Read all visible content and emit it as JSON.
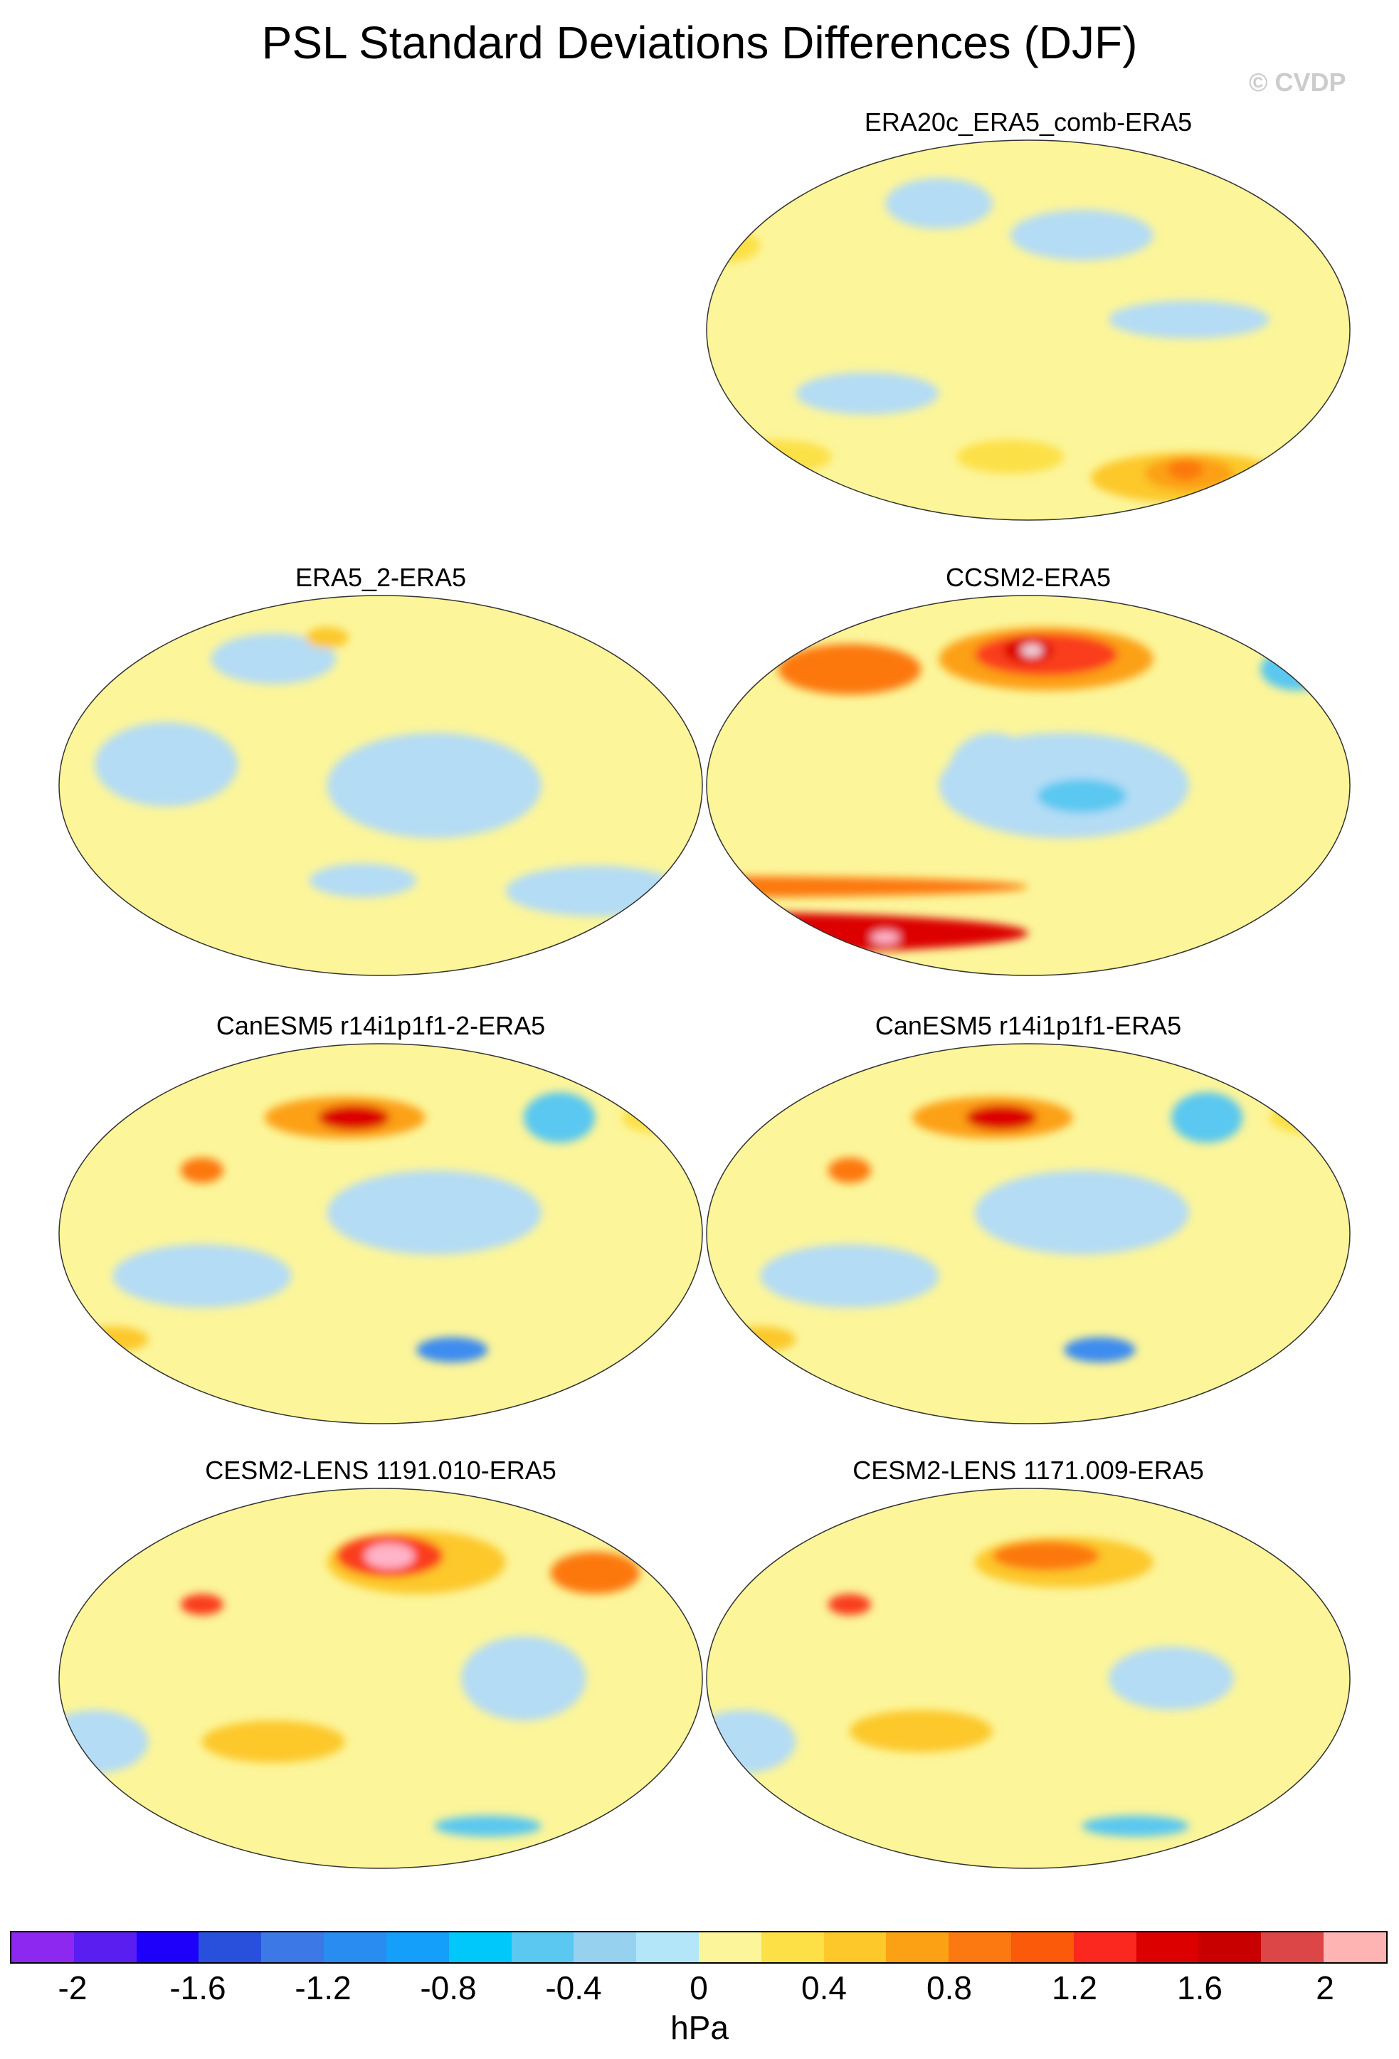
{
  "figure": {
    "title": "PSL Standard Deviations Differences (DJF)",
    "copyright": "© CVDP"
  },
  "panels": [
    {
      "title": "ERA20c_ERA5_comb-ERA5",
      "base": "#fcf59a",
      "blobs": [
        {
          "lon": -150,
          "lat": 45,
          "rx": 40,
          "ry": 12,
          "c": "#b4dcf5"
        },
        {
          "lon": 130,
          "lat": 60,
          "rx": 30,
          "ry": 12,
          "c": "#b4dcf5"
        },
        {
          "lon": 90,
          "lat": -30,
          "rx": 40,
          "ry": 10,
          "c": "#b4dcf5"
        },
        {
          "lon": -90,
          "lat": 5,
          "rx": 45,
          "ry": 9,
          "c": "#b4dcf5"
        },
        {
          "lon": -20,
          "lat": 65,
          "rx": 25,
          "ry": 10,
          "c": "#b4dcf5"
        },
        {
          "lon": 10,
          "lat": 40,
          "rx": 20,
          "ry": 8,
          "c": "#fce046"
        },
        {
          "lon": -90,
          "lat": -70,
          "rx": 55,
          "ry": 12,
          "c": "#fcc82a"
        },
        {
          "lon": -90,
          "lat": -68,
          "rx": 25,
          "ry": 8,
          "c": "#fca014"
        },
        {
          "lon": -92,
          "lat": -66,
          "rx": 10,
          "ry": 5,
          "c": "#fc7810"
        },
        {
          "lon": 40,
          "lat": -60,
          "rx": 30,
          "ry": 8,
          "c": "#fce046"
        },
        {
          "lon": 170,
          "lat": -60,
          "rx": 30,
          "ry": 8,
          "c": "#fce046"
        }
      ]
    },
    {
      "title": "ERA5_2-ERA5",
      "base": "#fcf59a",
      "blobs": [
        {
          "lon": -150,
          "lat": 0,
          "rx": 60,
          "ry": 25,
          "c": "#b4dcf5"
        },
        {
          "lon": 60,
          "lat": 10,
          "rx": 40,
          "ry": 20,
          "c": "#b4dcf5"
        },
        {
          "lon": -60,
          "lat": -50,
          "rx": 50,
          "ry": 12,
          "c": "#b4dcf5"
        },
        {
          "lon": 120,
          "lat": 60,
          "rx": 35,
          "ry": 12,
          "c": "#b4dcf5"
        },
        {
          "lon": 170,
          "lat": -45,
          "rx": 30,
          "ry": 8,
          "c": "#b4dcf5"
        },
        {
          "lon": -10,
          "lat": 60,
          "rx": 20,
          "ry": 10,
          "c": "#fce046"
        },
        {
          "lon": -10,
          "lat": -70,
          "rx": 12,
          "ry": 5,
          "c": "#5ac8f0"
        },
        {
          "lon": 150,
          "lat": 70,
          "rx": 12,
          "ry": 5,
          "c": "#fcc82a"
        }
      ]
    },
    {
      "title": "CCSM2-ERA5",
      "base": "#fcf59a",
      "blobs": [
        {
          "lon": -160,
          "lat": 0,
          "rx": 70,
          "ry": 25,
          "c": "#b4dcf5"
        },
        {
          "lon": 160,
          "lat": 5,
          "rx": 25,
          "ry": 20,
          "c": "#b4dcf5"
        },
        {
          "lon": -150,
          "lat": -5,
          "rx": 25,
          "ry": 8,
          "c": "#5ac8f0"
        },
        {
          "lon": -170,
          "lat": 60,
          "rx": 60,
          "ry": 15,
          "c": "#fca014"
        },
        {
          "lon": -170,
          "lat": 62,
          "rx": 40,
          "ry": 10,
          "c": "#fa3c1e"
        },
        {
          "lon": -180,
          "lat": 64,
          "rx": 14,
          "ry": 6,
          "c": "#dc0000"
        },
        {
          "lon": -178,
          "lat": 64,
          "rx": 6,
          "ry": 3,
          "c": "#f0d2dc"
        },
        {
          "lon": 80,
          "lat": 55,
          "rx": 40,
          "ry": 12,
          "c": "#fc7810"
        },
        {
          "lon": -30,
          "lat": 55,
          "rx": 20,
          "ry": 10,
          "c": "#5ac8f0"
        },
        {
          "lon": 0,
          "lat": -48,
          "rx": 180,
          "ry": 5,
          "c": "#fc7810"
        },
        {
          "lon": 0,
          "lat": -70,
          "rx": 180,
          "ry": 10,
          "c": "#dc0000"
        },
        {
          "lon": -30,
          "lat": -70,
          "rx": 15,
          "ry": 4,
          "c": "#ffb4c8"
        },
        {
          "lon": 100,
          "lat": -72,
          "rx": 8,
          "ry": 3,
          "c": "#ffb4c8"
        }
      ]
    },
    {
      "title": "CanESM5 r14i1p1f1-2-ERA5",
      "base": "#fcf59a",
      "blobs": [
        {
          "lon": -150,
          "lat": 10,
          "rx": 60,
          "ry": 20,
          "c": "#b4dcf5"
        },
        {
          "lon": 80,
          "lat": -20,
          "rx": 50,
          "ry": 15,
          "c": "#b4dcf5"
        },
        {
          "lon": -80,
          "lat": 55,
          "rx": 20,
          "ry": 12,
          "c": "#5ac8f0"
        },
        {
          "lon": 160,
          "lat": 55,
          "rx": 45,
          "ry": 10,
          "c": "#fca014"
        },
        {
          "lon": 165,
          "lat": 55,
          "rx": 20,
          "ry": 6,
          "c": "#dc0000"
        },
        {
          "lon": 80,
          "lat": 30,
          "rx": 12,
          "ry": 6,
          "c": "#fc7810"
        },
        {
          "lon": -140,
          "lat": -55,
          "rx": 20,
          "ry": 6,
          "c": "#3c8cf0"
        },
        {
          "lon": 30,
          "lat": -50,
          "rx": 20,
          "ry": 6,
          "c": "#fcc82a"
        },
        {
          "lon": -20,
          "lat": 55,
          "rx": 25,
          "ry": 8,
          "c": "#fce046"
        }
      ]
    },
    {
      "title": "CanESM5 r14i1p1f1-ERA5",
      "base": "#fcf59a",
      "blobs": [
        {
          "lon": -150,
          "lat": 10,
          "rx": 60,
          "ry": 20,
          "c": "#b4dcf5"
        },
        {
          "lon": 80,
          "lat": -20,
          "rx": 50,
          "ry": 15,
          "c": "#b4dcf5"
        },
        {
          "lon": -80,
          "lat": 55,
          "rx": 20,
          "ry": 12,
          "c": "#5ac8f0"
        },
        {
          "lon": 160,
          "lat": 55,
          "rx": 45,
          "ry": 10,
          "c": "#fca014"
        },
        {
          "lon": 165,
          "lat": 55,
          "rx": 20,
          "ry": 6,
          "c": "#dc0000"
        },
        {
          "lon": 80,
          "lat": 30,
          "rx": 12,
          "ry": 6,
          "c": "#fc7810"
        },
        {
          "lon": -140,
          "lat": -55,
          "rx": 20,
          "ry": 6,
          "c": "#3c8cf0"
        },
        {
          "lon": 30,
          "lat": -50,
          "rx": 20,
          "ry": 6,
          "c": "#fcc82a"
        },
        {
          "lon": -20,
          "lat": 55,
          "rx": 25,
          "ry": 8,
          "c": "#fce046"
        }
      ]
    },
    {
      "title": "CESM2-LENS 1191.010-ERA5",
      "base": "#fcf59a",
      "blobs": [
        {
          "lon": -100,
          "lat": 0,
          "rx": 35,
          "ry": 20,
          "c": "#b4dcf5"
        },
        {
          "lon": 20,
          "lat": -30,
          "rx": 30,
          "ry": 15,
          "c": "#b4dcf5"
        },
        {
          "lon": -160,
          "lat": 55,
          "rx": 50,
          "ry": 15,
          "c": "#fcc82a"
        },
        {
          "lon": -175,
          "lat": 58,
          "rx": 30,
          "ry": 10,
          "c": "#fa3c1e"
        },
        {
          "lon": -175,
          "lat": 58,
          "rx": 14,
          "ry": 6,
          "c": "#ffb4c8"
        },
        {
          "lon": -60,
          "lat": 50,
          "rx": 25,
          "ry": 10,
          "c": "#fc7810"
        },
        {
          "lon": 120,
          "lat": -30,
          "rx": 40,
          "ry": 10,
          "c": "#fcc82a"
        },
        {
          "lon": -120,
          "lat": -70,
          "rx": 30,
          "ry": 5,
          "c": "#5ac8f0"
        },
        {
          "lon": 80,
          "lat": 35,
          "rx": 12,
          "ry": 5,
          "c": "#fa3c1e"
        }
      ]
    },
    {
      "title": "CESM2-LENS 1171.009-ERA5",
      "base": "#fcf59a",
      "blobs": [
        {
          "lon": -100,
          "lat": 0,
          "rx": 35,
          "ry": 15,
          "c": "#b4dcf5"
        },
        {
          "lon": 20,
          "lat": -30,
          "rx": 30,
          "ry": 15,
          "c": "#b4dcf5"
        },
        {
          "lon": -160,
          "lat": 55,
          "rx": 50,
          "ry": 12,
          "c": "#fcc82a"
        },
        {
          "lon": -170,
          "lat": 58,
          "rx": 30,
          "ry": 7,
          "c": "#fc7810"
        },
        {
          "lon": -20,
          "lat": 60,
          "rx": 10,
          "ry": 5,
          "c": "#dc0000"
        },
        {
          "lon": 120,
          "lat": -25,
          "rx": 40,
          "ry": 10,
          "c": "#fcc82a"
        },
        {
          "lon": -120,
          "lat": -70,
          "rx": 30,
          "ry": 5,
          "c": "#5ac8f0"
        },
        {
          "lon": 80,
          "lat": 35,
          "rx": 12,
          "ry": 5,
          "c": "#fa3c1e"
        }
      ]
    }
  ],
  "colorbar": {
    "colors": [
      "#8c28f0",
      "#5a1ef0",
      "#1e00fa",
      "#2850dc",
      "#3c78e6",
      "#288cf0",
      "#14a0fa",
      "#00c8fa",
      "#5ac8f0",
      "#96d2f0",
      "#b4e6fa",
      "#fcf59a",
      "#fce046",
      "#fcc82a",
      "#fca014",
      "#fc7810",
      "#fa5a0a",
      "#fa281e",
      "#dc0000",
      "#c80000",
      "#dc4646",
      "#ffb4b4"
    ],
    "tick_labels": [
      "-2",
      "-1.6",
      "-1.2",
      "-0.8",
      "-0.4",
      "0",
      "0.4",
      "0.8",
      "1.2",
      "1.6",
      "2"
    ],
    "units": "hPa"
  }
}
